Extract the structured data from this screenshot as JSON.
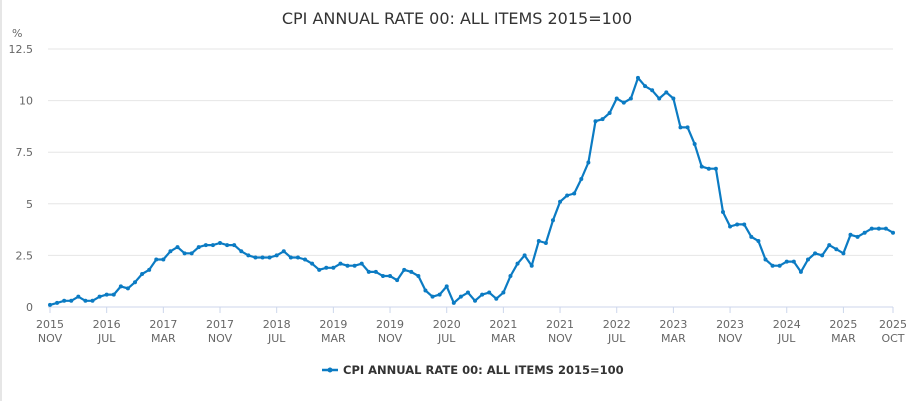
{
  "chart_data": {
    "type": "line",
    "title": "CPI ANNUAL RATE 00: ALL ITEMS 2015=100",
    "ylabel": "%",
    "xlabel": "",
    "ylim": [
      0,
      12.5
    ],
    "yticks": [
      "0",
      "2.5",
      "5",
      "7.5",
      "10",
      "12.5"
    ],
    "xticks": [
      {
        "year": "2015",
        "month": "NOV",
        "index": 0
      },
      {
        "year": "2016",
        "month": "JUL",
        "index": 8
      },
      {
        "year": "2017",
        "month": "MAR",
        "index": 16
      },
      {
        "year": "2017",
        "month": "NOV",
        "index": 24
      },
      {
        "year": "2018",
        "month": "JUL",
        "index": 32
      },
      {
        "year": "2019",
        "month": "MAR",
        "index": 40
      },
      {
        "year": "2019",
        "month": "NOV",
        "index": 48
      },
      {
        "year": "2020",
        "month": "JUL",
        "index": 56
      },
      {
        "year": "2021",
        "month": "MAR",
        "index": 64
      },
      {
        "year": "2021",
        "month": "NOV",
        "index": 72
      },
      {
        "year": "2022",
        "month": "JUL",
        "index": 80
      },
      {
        "year": "2023",
        "month": "MAR",
        "index": 88
      },
      {
        "year": "2023",
        "month": "NOV",
        "index": 96
      },
      {
        "year": "2024",
        "month": "JUL",
        "index": 104
      },
      {
        "year": "2025",
        "month": "MAR",
        "index": 112
      },
      {
        "year": "2025",
        "month": "OCT",
        "index": 119
      }
    ],
    "x_start": "2015 NOV",
    "x_end": "2025 OCT",
    "grid": true,
    "legend_position": "bottom",
    "series": [
      {
        "name": "CPI ANNUAL RATE 00: ALL ITEMS 2015=100",
        "color": "#0b7bc3",
        "values": [
          0.1,
          0.2,
          0.3,
          0.3,
          0.5,
          0.3,
          0.3,
          0.5,
          0.6,
          0.6,
          1.0,
          0.9,
          1.2,
          1.6,
          1.8,
          2.3,
          2.3,
          2.7,
          2.9,
          2.6,
          2.6,
          2.9,
          3.0,
          3.0,
          3.1,
          3.0,
          3.0,
          2.7,
          2.5,
          2.4,
          2.4,
          2.4,
          2.5,
          2.7,
          2.4,
          2.4,
          2.3,
          2.1,
          1.8,
          1.9,
          1.9,
          2.1,
          2.0,
          2.0,
          2.1,
          1.7,
          1.7,
          1.5,
          1.5,
          1.3,
          1.8,
          1.7,
          1.5,
          0.8,
          0.5,
          0.6,
          1.0,
          0.2,
          0.5,
          0.7,
          0.3,
          0.6,
          0.7,
          0.4,
          0.7,
          1.5,
          2.1,
          2.5,
          2.0,
          3.2,
          3.1,
          4.2,
          5.1,
          5.4,
          5.5,
          6.2,
          7.0,
          9.0,
          9.1,
          9.4,
          10.1,
          9.9,
          10.1,
          11.1,
          10.7,
          10.5,
          10.1,
          10.4,
          10.1,
          8.7,
          8.7,
          7.9,
          6.8,
          6.7,
          6.7,
          4.6,
          3.9,
          4.0,
          4.0,
          3.4,
          3.2,
          2.3,
          2.0,
          2.0,
          2.2,
          2.2,
          1.7,
          2.3,
          2.6,
          2.5,
          3.0,
          2.8,
          2.6,
          3.5,
          3.4,
          3.6,
          3.8,
          3.8,
          3.8,
          3.6
        ]
      }
    ]
  }
}
